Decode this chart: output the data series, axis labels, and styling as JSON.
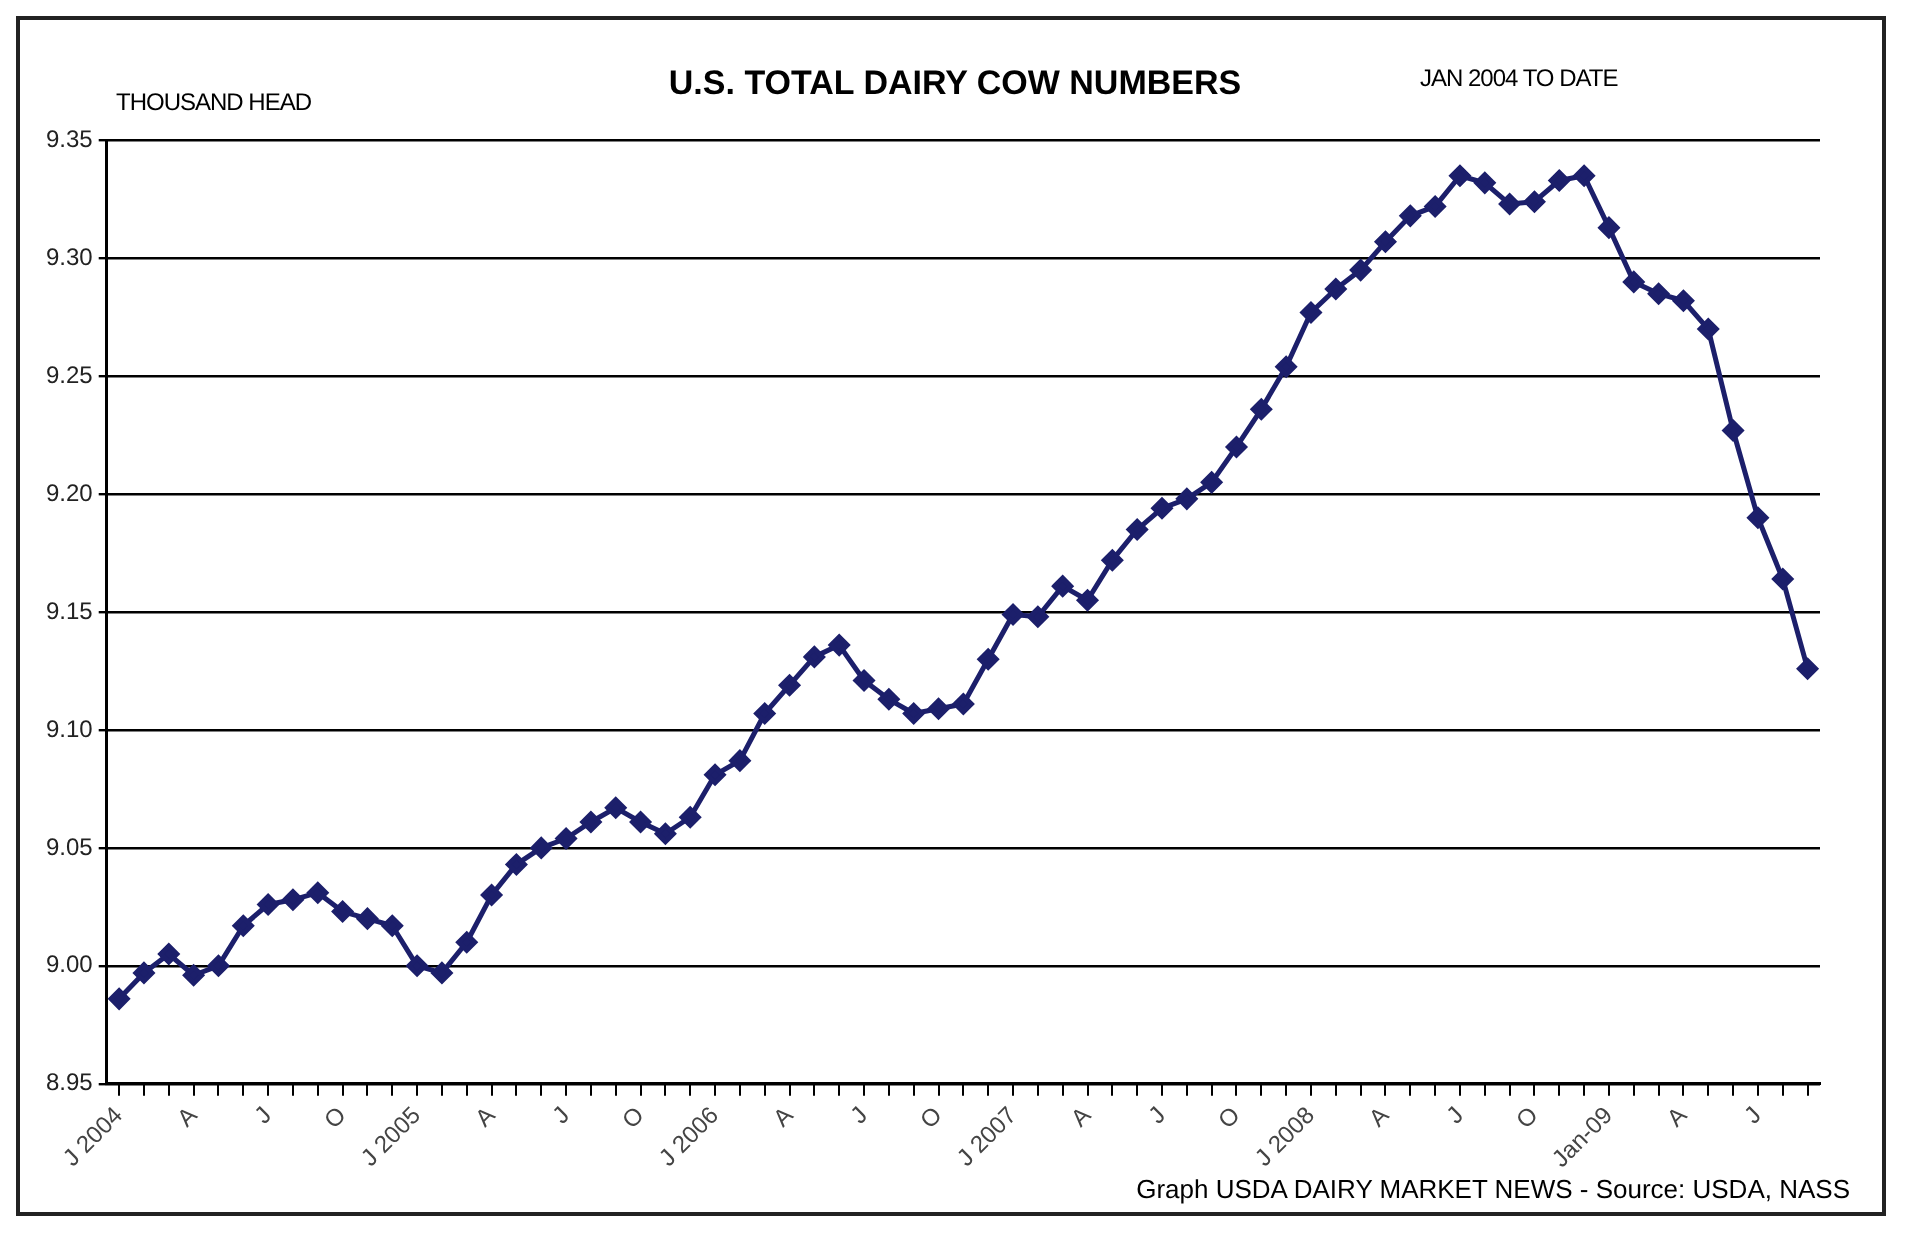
{
  "chart_data": {
    "type": "line",
    "title": "U.S. TOTAL DAIRY COW NUMBERS",
    "subtitle": "JAN 2004 TO DATE",
    "ylabel": "THOUSAND HEAD",
    "annotations": [
      "Graph USDA DAIRY MARKET NEWS - Source:  USDA, NASS"
    ],
    "categories": [
      "J 2004",
      null,
      null,
      "A",
      null,
      null,
      "J",
      null,
      null,
      "O",
      null,
      null,
      "J 2005",
      null,
      null,
      "A",
      null,
      null,
      "J",
      null,
      null,
      "O",
      null,
      null,
      "J 2006",
      null,
      null,
      "A",
      null,
      null,
      "J",
      null,
      null,
      "O",
      null,
      null,
      "J 2007",
      null,
      null,
      "A",
      null,
      null,
      "J",
      null,
      null,
      "O",
      null,
      null,
      "J 2008",
      null,
      null,
      "A",
      null,
      null,
      "J",
      null,
      null,
      "O",
      null,
      null,
      "Jan-09",
      null,
      null,
      "A",
      null,
      null,
      "J",
      null,
      null
    ],
    "series": [
      {
        "color": "#1c1f6b",
        "values": [
          8.986,
          8.997,
          9.005,
          8.996,
          9.0,
          9.017,
          9.026,
          9.028,
          9.031,
          9.023,
          9.02,
          9.017,
          9.0,
          8.997,
          9.01,
          9.03,
          9.043,
          9.05,
          9.054,
          9.061,
          9.067,
          9.061,
          9.056,
          9.063,
          9.081,
          9.087,
          9.107,
          9.119,
          9.131,
          9.136,
          9.121,
          9.113,
          9.107,
          9.109,
          9.111,
          9.13,
          9.149,
          9.148,
          9.161,
          9.155,
          9.172,
          9.185,
          9.194,
          9.198,
          9.205,
          9.22,
          9.236,
          9.254,
          9.277,
          9.287,
          9.295,
          9.307,
          9.318,
          9.322,
          9.335,
          9.332,
          9.323,
          9.324,
          9.333,
          9.335,
          9.313,
          9.29,
          9.285,
          9.282,
          9.27,
          9.227,
          9.19,
          9.164,
          9.126
        ]
      }
    ],
    "ylim": [
      8.95,
      9.35
    ],
    "yticks": [
      {
        "value": 8.95,
        "label": "8.95"
      },
      {
        "value": 9.0,
        "label": "9.00"
      },
      {
        "value": 9.05,
        "label": "9.05"
      },
      {
        "value": 9.1,
        "label": "9.10"
      },
      {
        "value": 9.15,
        "label": "9.15"
      },
      {
        "value": 9.2,
        "label": "9.20"
      },
      {
        "value": 9.25,
        "label": "9.25"
      },
      {
        "value": 9.3,
        "label": "9.30"
      },
      {
        "value": 9.35,
        "label": "9.35"
      }
    ],
    "grid": "y",
    "legend": false,
    "marker": "diamond",
    "line_style": "solid"
  }
}
